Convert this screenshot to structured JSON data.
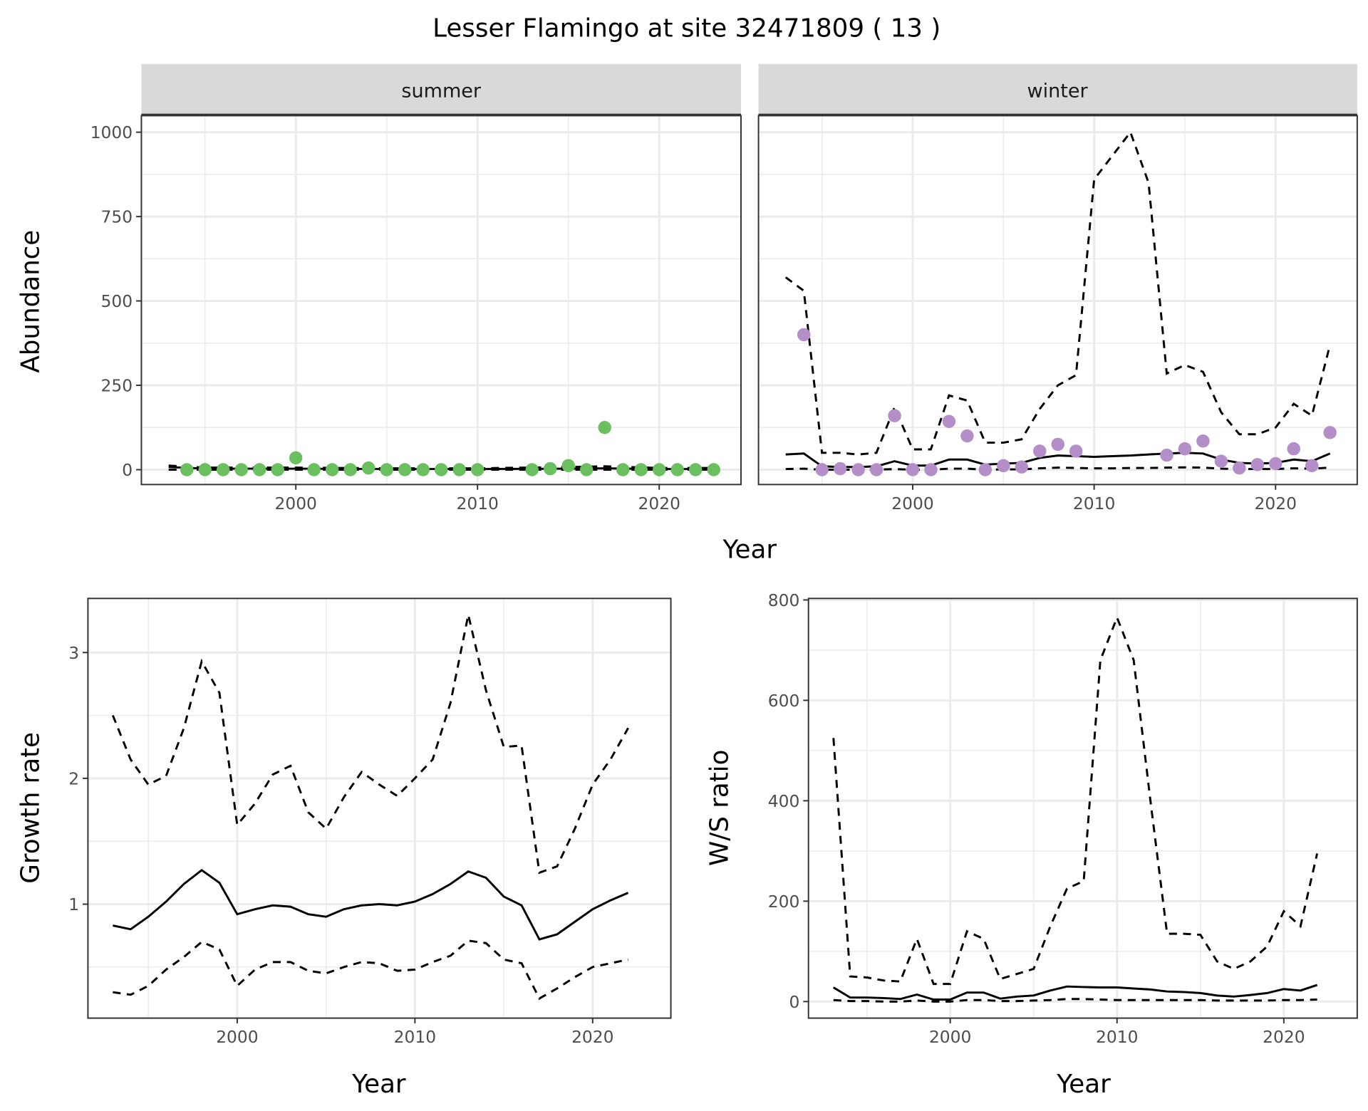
{
  "chart_data": [
    {
      "type": "line",
      "title": "Lesser Flamingo at site 32471809 ( 13 )",
      "facet": "summer",
      "xlabel": "Year",
      "ylabel": "Abundance",
      "xlim": [
        1991.5,
        2024.5
      ],
      "ylim": [
        -44,
        1049
      ],
      "xticks": [
        2000,
        2010,
        2020
      ],
      "yticks": [
        0,
        250,
        500,
        750,
        1000
      ],
      "grid": true,
      "point_color": "#6abf5e",
      "points": {
        "x": [
          1994,
          1995,
          1996,
          1997,
          1998,
          1999,
          2000,
          2001,
          2002,
          2003,
          2004,
          2005,
          2006,
          2007,
          2008,
          2009,
          2010,
          2013,
          2014,
          2015,
          2016,
          2017,
          2018,
          2019,
          2020,
          2021,
          2022,
          2023
        ],
        "y": [
          0,
          0,
          0,
          0,
          0,
          0,
          35,
          0,
          0,
          0,
          5,
          0,
          0,
          0,
          0,
          0,
          0,
          0,
          3,
          12,
          0,
          125,
          0,
          0,
          0,
          0,
          0,
          0
        ]
      },
      "x": [
        1993,
        1995,
        2000,
        2005,
        2010,
        2015,
        2017,
        2020,
        2023
      ],
      "series": [
        {
          "style": "solid",
          "values": [
            8,
            3,
            3,
            2,
            2,
            3,
            4,
            2,
            2
          ]
        },
        {
          "style": "dashed",
          "values": [
            12,
            6,
            6,
            4,
            4,
            8,
            10,
            5,
            5
          ]
        },
        {
          "style": "dashed",
          "values": [
            0,
            0,
            0,
            0,
            0,
            0,
            0,
            0,
            0
          ]
        }
      ]
    },
    {
      "type": "line",
      "facet": "winter",
      "xlabel": "Year",
      "ylabel": "Abundance",
      "xlim": [
        1991.5,
        2024.5
      ],
      "ylim": [
        -44,
        1049
      ],
      "xticks": [
        2000,
        2010,
        2020
      ],
      "yticks": [
        0,
        250,
        500,
        750,
        1000
      ],
      "grid": true,
      "point_color": "#b48ec8",
      "points": {
        "x": [
          1994,
          1995,
          1996,
          1997,
          1998,
          1999,
          2000,
          2001,
          2002,
          2003,
          2004,
          2005,
          2006,
          2007,
          2008,
          2009,
          2014,
          2015,
          2016,
          2017,
          2018,
          2019,
          2020,
          2021,
          2022,
          2023
        ],
        "y": [
          400,
          0,
          3,
          0,
          0,
          160,
          0,
          0,
          143,
          100,
          0,
          12,
          8,
          55,
          75,
          55,
          43,
          62,
          85,
          25,
          5,
          15,
          18,
          62,
          12,
          110
        ]
      },
      "x": [
        1993,
        1994,
        1995,
        1996,
        1997,
        1998,
        1999,
        2000,
        2001,
        2002,
        2003,
        2004,
        2005,
        2006,
        2007,
        2008,
        2009,
        2010,
        2011,
        2012,
        2013,
        2014,
        2015,
        2016,
        2017,
        2018,
        2019,
        2020,
        2021,
        2022,
        2023
      ],
      "series": [
        {
          "style": "solid",
          "values": [
            45,
            48,
            10,
            8,
            8,
            10,
            25,
            12,
            12,
            30,
            30,
            15,
            18,
            20,
            35,
            42,
            40,
            38,
            40,
            42,
            45,
            48,
            50,
            48,
            30,
            20,
            18,
            20,
            30,
            25,
            48
          ]
        },
        {
          "style": "dashed",
          "values": [
            570,
            530,
            50,
            50,
            45,
            50,
            185,
            60,
            60,
            220,
            205,
            80,
            80,
            90,
            180,
            250,
            280,
            860,
            930,
            1000,
            850,
            285,
            310,
            290,
            170,
            105,
            105,
            125,
            195,
            160,
            370
          ]
        },
        {
          "style": "dashed",
          "values": [
            2,
            3,
            0,
            0,
            0,
            0,
            2,
            0,
            0,
            3,
            3,
            0,
            1,
            1,
            4,
            6,
            5,
            4,
            4,
            5,
            5,
            6,
            7,
            6,
            3,
            2,
            2,
            2,
            4,
            3,
            6
          ]
        }
      ]
    },
    {
      "type": "line",
      "xlabel": "Year",
      "ylabel": "Growth rate",
      "xlim": [
        1991.6,
        2024.4
      ],
      "ylim": [
        0.094,
        3.43
      ],
      "xticks": [
        2000,
        2010,
        2020
      ],
      "yticks": [
        1,
        2,
        3
      ],
      "grid": true,
      "x": [
        1993,
        1994,
        1995,
        1996,
        1997,
        1998,
        1999,
        2000,
        2001,
        2002,
        2003,
        2004,
        2005,
        2006,
        2007,
        2008,
        2009,
        2010,
        2011,
        2012,
        2013,
        2014,
        2015,
        2016,
        2017,
        2018,
        2019,
        2020,
        2021,
        2022
      ],
      "series": [
        {
          "style": "solid",
          "values": [
            0.83,
            0.8,
            0.9,
            1.02,
            1.16,
            1.27,
            1.17,
            0.92,
            0.96,
            0.99,
            0.98,
            0.92,
            0.9,
            0.96,
            0.99,
            1.0,
            0.99,
            1.02,
            1.08,
            1.16,
            1.26,
            1.21,
            1.06,
            0.99,
            0.72,
            0.76,
            0.86,
            0.96,
            1.03,
            1.09
          ]
        },
        {
          "style": "dashed",
          "values": [
            2.5,
            2.15,
            1.95,
            2.02,
            2.4,
            2.93,
            2.68,
            1.63,
            1.8,
            2.03,
            2.1,
            1.73,
            1.6,
            1.85,
            2.05,
            1.95,
            1.86,
            2.0,
            2.15,
            2.6,
            3.3,
            2.7,
            2.25,
            2.26,
            1.25,
            1.3,
            1.6,
            1.95,
            2.15,
            2.4
          ]
        },
        {
          "style": "dashed",
          "values": [
            0.3,
            0.28,
            0.35,
            0.48,
            0.58,
            0.7,
            0.64,
            0.35,
            0.48,
            0.54,
            0.54,
            0.47,
            0.45,
            0.5,
            0.54,
            0.53,
            0.47,
            0.48,
            0.54,
            0.59,
            0.71,
            0.69,
            0.56,
            0.53,
            0.25,
            0.33,
            0.42,
            0.5,
            0.53,
            0.56
          ]
        }
      ]
    },
    {
      "type": "line",
      "xlabel": "Year",
      "ylabel": "W/S ratio",
      "xlim": [
        1991.5,
        2024.4
      ],
      "ylim": [
        -33,
        803
      ],
      "xticks": [
        2000,
        2010,
        2020
      ],
      "yticks": [
        0,
        200,
        400,
        600,
        800
      ],
      "grid": true,
      "x": [
        1993,
        1994,
        1995,
        1996,
        1997,
        1998,
        1999,
        2000,
        2001,
        2002,
        2003,
        2004,
        2005,
        2006,
        2007,
        2008,
        2009,
        2010,
        2011,
        2012,
        2013,
        2014,
        2015,
        2016,
        2017,
        2018,
        2019,
        2020,
        2021,
        2022
      ],
      "series": [
        {
          "style": "solid",
          "values": [
            28,
            8,
            8,
            7,
            5,
            14,
            4,
            4,
            18,
            18,
            6,
            10,
            12,
            22,
            30,
            29,
            28,
            28,
            26,
            24,
            20,
            19,
            17,
            12,
            10,
            13,
            17,
            25,
            22,
            33
          ]
        },
        {
          "style": "dashed",
          "values": [
            525,
            50,
            48,
            42,
            40,
            125,
            35,
            35,
            140,
            125,
            45,
            55,
            65,
            150,
            225,
            240,
            680,
            765,
            680,
            400,
            135,
            135,
            133,
            80,
            65,
            80,
            110,
            180,
            150,
            295
          ]
        },
        {
          "style": "dashed",
          "values": [
            3,
            1,
            1,
            0,
            0,
            2,
            0,
            0,
            3,
            3,
            1,
            1,
            2,
            3,
            5,
            5,
            4,
            3,
            3,
            3,
            3,
            3,
            3,
            2,
            2,
            2,
            2,
            3,
            3,
            4
          ]
        }
      ]
    }
  ]
}
